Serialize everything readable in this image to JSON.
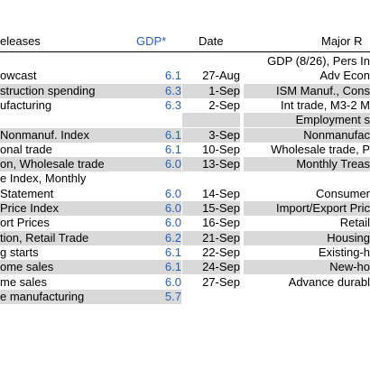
{
  "header": {
    "releases": "eleases",
    "gdp": "GDP*",
    "date": "Date",
    "major": "Major R"
  },
  "rows": [
    {
      "release": "",
      "gdp": "",
      "date": "",
      "major": "GDP (8/26), Pers In",
      "rel_shade": false,
      "maj_shade": false
    },
    {
      "release": "owcast",
      "gdp": "6.1",
      "date": "27-Aug",
      "major": "Adv Econ",
      "rel_shade": false,
      "maj_shade": false
    },
    {
      "release": "struction spending",
      "gdp": "6.3",
      "date": "1-Sep",
      "major": "ISM Manuf., Cons",
      "rel_shade": true,
      "maj_shade": true
    },
    {
      "release": "ufacturing",
      "gdp": "6.3",
      "date": "2-Sep",
      "major": "Int trade, M3-2 M",
      "rel_shade": false,
      "maj_shade": false
    },
    {
      "release": "",
      "gdp": "",
      "date": "",
      "major": "Employment s",
      "rel_shade": false,
      "maj_shade": true
    },
    {
      "release": "Nonmanuf. Index",
      "gdp": "6.1",
      "date": "3-Sep",
      "major": "Nonmanufac",
      "rel_shade": true,
      "maj_shade": true
    },
    {
      "release": "onal trade",
      "gdp": "6.1",
      "date": "10-Sep",
      "major": "Wholesale trade, P",
      "rel_shade": false,
      "maj_shade": false
    },
    {
      "release": "on, Wholesale trade",
      "gdp": "6.0",
      "date": "13-Sep",
      "major": "Monthly Treas",
      "rel_shade": true,
      "maj_shade": true
    },
    {
      "release": "e Index, Monthly",
      "gdp": "",
      "date": "",
      "major": "",
      "rel_shade": false,
      "maj_shade": false
    },
    {
      "release": "Statement",
      "gdp": "6.0",
      "date": "14-Sep",
      "major": "Consumer",
      "rel_shade": false,
      "maj_shade": false
    },
    {
      "release": "Price Index",
      "gdp": "6.0",
      "date": "15-Sep",
      "major": "Import/Export Pric",
      "rel_shade": true,
      "maj_shade": true
    },
    {
      "release": "ort Prices",
      "gdp": "6.0",
      "date": "16-Sep",
      "major": "Retail",
      "rel_shade": false,
      "maj_shade": false
    },
    {
      "release": "tion, Retail Trade",
      "gdp": "6.2",
      "date": "21-Sep",
      "major": "Housing",
      "rel_shade": true,
      "maj_shade": true
    },
    {
      "release": "g starts",
      "gdp": "6.1",
      "date": "22-Sep",
      "major": "Existing-h",
      "rel_shade": false,
      "maj_shade": false
    },
    {
      "release": "ome sales",
      "gdp": "6.1",
      "date": "24-Sep",
      "major": "New-ho",
      "rel_shade": true,
      "maj_shade": true
    },
    {
      "release": "me sales",
      "gdp": "6.0",
      "date": "27-Sep",
      "major": "Advance durabl",
      "rel_shade": false,
      "maj_shade": false
    },
    {
      "release": "e manufacturing",
      "gdp": "5.7",
      "date": "",
      "major": "",
      "rel_shade": true,
      "maj_shade": false
    }
  ]
}
